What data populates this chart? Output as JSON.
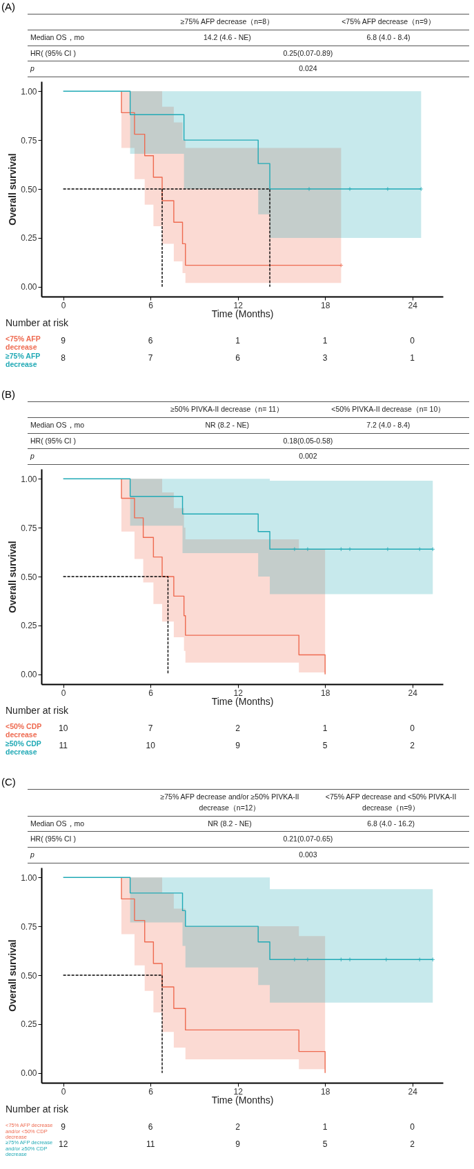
{
  "chart_data": [
    {
      "type": "step",
      "title": "(A)",
      "xlabel": "Time (Months)",
      "ylabel": "Overall survival",
      "xlim": [
        -1.5,
        26.1
      ],
      "xticks": [
        0,
        6,
        12,
        18,
        24
      ],
      "ylim": [
        -0.05,
        1.05
      ],
      "yticks": [
        {
          "value": 0,
          "label": "0.00"
        },
        {
          "value": 0.25,
          "label": "0.25"
        },
        {
          "value": 0.5,
          "label": "0.50"
        },
        {
          "value": 0.75,
          "label": "0.75"
        },
        {
          "value": 1,
          "label": "1.00"
        }
      ],
      "series": [
        {
          "name": "<75% AFP decrease",
          "type": "step",
          "color": "#ee6a50",
          "x": [
            4.0,
            4.0,
            4.9,
            5.6,
            6.2,
            6.8,
            7.6,
            8.2,
            8.4,
            19.1
          ],
          "values": [
            1,
            0.89,
            0.78,
            0.67,
            0.56,
            0.44,
            0.33,
            0.22,
            0.11,
            0.11
          ],
          "lower": [
            1,
            0.71,
            0.55,
            0.42,
            0.31,
            0.22,
            0.13,
            0.07,
            0.02,
            0.02
          ],
          "upper": [
            1,
            1,
            1,
            1,
            1,
            0.92,
            0.84,
            0.75,
            0.71,
            0.71
          ]
        },
        {
          "name": "≥75% AFP decrease",
          "type": "step",
          "color": "#20a9b5",
          "x": [
            0,
            4.6,
            8.3,
            13.4,
            14.2,
            24.6
          ],
          "values": [
            1,
            0.88,
            0.75,
            0.63,
            0.5,
            0.5
          ],
          "lower": [
            1,
            0.68,
            0.5,
            0.37,
            0.25,
            0.25
          ],
          "upper": [
            1,
            1,
            1,
            1,
            1,
            1
          ]
        },
        {
          "type": "scatter",
          "marker": "cross",
          "color": "#ee6a50",
          "x": [
            19.1
          ],
          "values": [
            0.11
          ]
        },
        {
          "type": "scatter",
          "marker": "cross",
          "color": "#20a9b5",
          "x": [
            16.9,
            19.7,
            22.3,
            24.6
          ],
          "values": [
            0.5,
            0.5,
            0.5,
            0.5
          ]
        },
        {
          "type": "line",
          "line_style": "dashed",
          "color": "#000000",
          "x": [
            0,
            14.2,
            14.2
          ],
          "values": [
            0.5,
            0.5,
            0
          ]
        },
        {
          "type": "line",
          "line_style": "dashed",
          "color": "#000000",
          "x": [
            6.8,
            6.8
          ],
          "values": [
            0.5,
            0
          ]
        }
      ],
      "annotations": [
        "≥75% AFP decrease（n=8）",
        "<75% AFP decrease（n=9）",
        "Median OS，mo",
        "14.2 (4.6 - NE)",
        "6.8 (4.0 - 8.4)",
        "HR( (95% CI )",
        "0.25(0.07-0.89)",
        "p",
        "0.024",
        "Number at risk",
        "9",
        "6",
        "1",
        "1",
        "0",
        "8",
        "7",
        "6",
        "3",
        "1"
      ]
    },
    {
      "type": "step",
      "title": "(B)",
      "xlabel": "Time (Months)",
      "ylabel": "Overall survival",
      "xlim": [
        -1.5,
        26.1
      ],
      "xticks": [
        0,
        6,
        12,
        18,
        24
      ],
      "ylim": [
        -0.05,
        1.05
      ],
      "yticks": [
        {
          "value": 0,
          "label": "0.00"
        },
        {
          "value": 0.25,
          "label": "0.25"
        },
        {
          "value": 0.5,
          "label": "0.50"
        },
        {
          "value": 0.75,
          "label": "0.75"
        },
        {
          "value": 1,
          "label": "1.00"
        }
      ],
      "series": [
        {
          "name": "<50% CDP decrease",
          "type": "step",
          "color": "#ee6a50",
          "x": [
            4.0,
            4.0,
            4.9,
            5.5,
            6.2,
            6.8,
            7.6,
            8.3,
            8.4,
            16.2,
            18.0
          ],
          "values": [
            1,
            0.9,
            0.8,
            0.7,
            0.6,
            0.5,
            0.4,
            0.3,
            0.2,
            0.1,
            0
          ],
          "lower": [
            1,
            0.73,
            0.59,
            0.47,
            0.36,
            0.27,
            0.19,
            0.12,
            0.06,
            0.01,
            0.01
          ],
          "upper": [
            1,
            1,
            1,
            1,
            1,
            0.93,
            0.85,
            0.75,
            0.69,
            0.64,
            0.64
          ]
        },
        {
          "name": "≥50% CDP decrease",
          "type": "step",
          "color": "#20a9b5",
          "x": [
            0,
            4.6,
            8.2,
            13.4,
            14.2,
            25.4
          ],
          "values": [
            1,
            0.91,
            0.82,
            0.73,
            0.64,
            0.64
          ],
          "lower": [
            1,
            0.76,
            0.62,
            0.5,
            0.41,
            0.41
          ],
          "upper": [
            1,
            1,
            1,
            1,
            0.99,
            0.99
          ]
        },
        {
          "type": "scatter",
          "marker": "cross",
          "color": "#20a9b5",
          "x": [
            15.9,
            16.8,
            19.1,
            19.7,
            22.3,
            24.5,
            25.4
          ],
          "values": [
            0.64,
            0.64,
            0.64,
            0.64,
            0.64,
            0.64,
            0.64
          ]
        },
        {
          "type": "line",
          "line_style": "dashed",
          "color": "#000000",
          "x": [
            0,
            7.2,
            7.2
          ],
          "values": [
            0.5,
            0.5,
            0
          ]
        }
      ],
      "annotations": [
        "≥50% PIVKA-II decrease（n= 11）",
        "<50% PIVKA-II decrease（n= 10）",
        "Median OS，mo",
        "NR (8.2 - NE)",
        "7.2 (4.0 - 8.4)",
        "HR( (95% CI )",
        "0.18(0.05-0.58)",
        "p",
        "0.002",
        "Number at risk",
        "10",
        "7",
        "2",
        "1",
        "0",
        "11",
        "10",
        "9",
        "5",
        "2"
      ]
    },
    {
      "type": "step",
      "title": "(C)",
      "xlabel": "Time (Months)",
      "ylabel": "Overall survival",
      "xlim": [
        -1.5,
        26.1
      ],
      "xticks": [
        0,
        6,
        12,
        18,
        24
      ],
      "ylim": [
        -0.05,
        1.05
      ],
      "yticks": [
        {
          "value": 0,
          "label": "0.00"
        },
        {
          "value": 0.25,
          "label": "0.25"
        },
        {
          "value": 0.5,
          "label": "0.50"
        },
        {
          "value": 0.75,
          "label": "0.75"
        },
        {
          "value": 1,
          "label": "1.00"
        }
      ],
      "series": [
        {
          "name": "<75% AFP decrease and/or <50% CDP decrease",
          "type": "step",
          "color": "#ee6a50",
          "x": [
            4.0,
            4.0,
            4.9,
            5.6,
            6.2,
            6.8,
            7.6,
            8.4,
            16.2,
            18.0
          ],
          "values": [
            1,
            0.89,
            0.78,
            0.67,
            0.56,
            0.44,
            0.33,
            0.22,
            0.11,
            0
          ],
          "lower": [
            1,
            0.71,
            0.55,
            0.42,
            0.31,
            0.21,
            0.13,
            0.07,
            0.02,
            0.02
          ],
          "upper": [
            1,
            1,
            1,
            1,
            1,
            0.92,
            0.84,
            0.75,
            0.7,
            0.7
          ]
        },
        {
          "name": "≥75% AFP decrease and/or ≥50% CDP decrease",
          "type": "step",
          "color": "#20a9b5",
          "x": [
            0,
            4.6,
            8.2,
            8.4,
            13.4,
            14.2,
            25.4
          ],
          "values": [
            1,
            0.92,
            0.83,
            0.75,
            0.67,
            0.58,
            0.58
          ],
          "lower": [
            1,
            0.77,
            0.65,
            0.54,
            0.45,
            0.36,
            0.36
          ],
          "upper": [
            1,
            1,
            1,
            1,
            1,
            0.94,
            0.94
          ]
        },
        {
          "type": "scatter",
          "marker": "cross",
          "color": "#20a9b5",
          "x": [
            15.9,
            16.8,
            19.1,
            19.7,
            22.2,
            24.5,
            25.4
          ],
          "values": [
            0.58,
            0.58,
            0.58,
            0.58,
            0.58,
            0.58,
            0.58
          ]
        },
        {
          "type": "line",
          "line_style": "dashed",
          "color": "#000000",
          "x": [
            0,
            6.8,
            6.8
          ],
          "values": [
            0.5,
            0.5,
            0
          ]
        }
      ],
      "annotations": [
        "≥75% AFP decrease and/or ≥50% PIVKA-II decrease（n=12）",
        "<75% AFP decrease and <50% PIVKA-II decrease（n=9）",
        "Median OS，mo",
        "NR (8.2 - NE)",
        "6.8 (4.0 - 16.2)",
        "HR( (95% CI )",
        "0.21(0.07-0.65)",
        "p",
        "0.003",
        "Number at risk",
        "9",
        "6",
        "2",
        "1",
        "0",
        "12",
        "11",
        "9",
        "5",
        "2"
      ]
    }
  ]
}
